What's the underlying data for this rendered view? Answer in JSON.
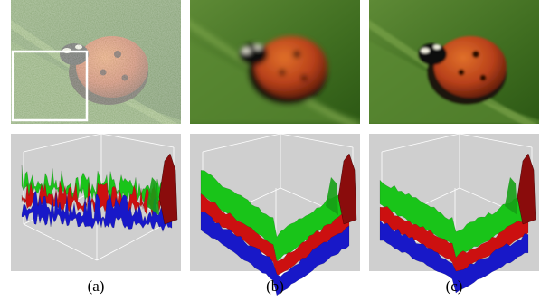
{
  "figure": {
    "captions": [
      "(a)",
      "(b)",
      "(c)"
    ]
  }
}
